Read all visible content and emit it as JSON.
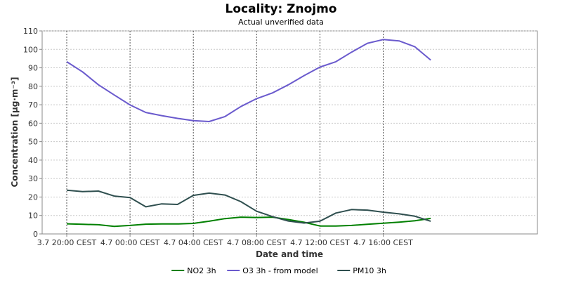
{
  "chart_data": {
    "type": "line",
    "title": "Locality: Znojmo",
    "subtitle": "Actual unverified data",
    "xlabel": "Date and time",
    "ylabel": "Concentration [µg·m⁻³]",
    "ylim": [
      0,
      110
    ],
    "yticks": [
      0,
      10,
      20,
      30,
      40,
      50,
      60,
      70,
      80,
      90,
      100,
      110
    ],
    "xlim": [
      "3.7 20:00",
      "5.7 02:00"
    ],
    "xticks": [
      "3.7 20:00 CEST",
      "4.7 00:00 CEST",
      "4.7 04:00 CEST",
      "4.7 08:00 CEST",
      "4.7 12:00 CEST",
      "4.7 16:00 CEST"
    ],
    "x": [
      "3.7 20:00",
      "3.7 21:00",
      "3.7 22:00",
      "3.7 23:00",
      "4.7 00:00",
      "4.7 01:00",
      "4.7 02:00",
      "4.7 03:00",
      "4.7 04:00",
      "4.7 05:00",
      "4.7 06:00",
      "4.7 07:00",
      "4.7 08:00",
      "4.7 09:00",
      "4.7 10:00",
      "4.7 11:00",
      "4.7 12:00",
      "4.7 13:00",
      "4.7 14:00",
      "4.7 15:00",
      "4.7 16:00",
      "4.7 17:00",
      "4.7 18:00",
      "4.7 19:00"
    ],
    "grid": true,
    "legend_position": "bottom",
    "series": [
      {
        "name": "NO2 3h",
        "color": "#008000",
        "values": [
          5.5,
          5.2,
          5.0,
          4.1,
          4.6,
          5.3,
          5.4,
          5.4,
          5.7,
          6.9,
          8.3,
          9.1,
          8.9,
          9.1,
          7.8,
          6.3,
          4.3,
          4.3,
          4.6,
          5.2,
          5.8,
          6.4,
          7.1,
          8.4
        ]
      },
      {
        "name": "O3 3h - from model",
        "color": "#6a5acd",
        "values": [
          93.3,
          87.8,
          80.8,
          75.3,
          69.9,
          65.8,
          64.1,
          62.6,
          61.4,
          60.9,
          63.6,
          69.0,
          73.3,
          76.4,
          80.8,
          85.8,
          90.4,
          93.3,
          98.5,
          103.3,
          105.3,
          104.6,
          101.4,
          94.2
        ]
      },
      {
        "name": "PM10 3h",
        "color": "#2f4f4f",
        "values": [
          23.7,
          22.9,
          23.2,
          20.5,
          19.7,
          14.7,
          16.3,
          16.0,
          20.9,
          22.1,
          21.1,
          17.5,
          12.3,
          9.4,
          7.0,
          5.9,
          6.9,
          11.3,
          13.2,
          12.9,
          11.8,
          10.9,
          9.6,
          6.9
        ]
      }
    ]
  }
}
